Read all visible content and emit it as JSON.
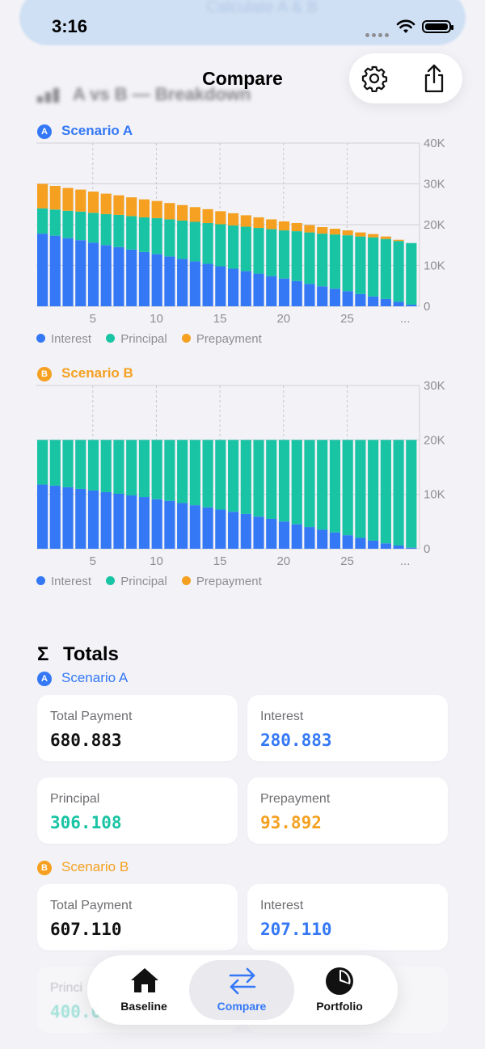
{
  "status": {
    "time": "3:16",
    "banner_text": "Calculate A & B"
  },
  "nav": {
    "title": "Compare",
    "section_title": "A vs B — Breakdown"
  },
  "colors": {
    "interest": "#3478f6",
    "principal": "#19c4a4",
    "prepayment": "#f5a020",
    "accent": "#3478f6"
  },
  "scenario_a": {
    "badge": "A",
    "label": "Scenario A"
  },
  "scenario_b": {
    "badge": "B",
    "label": "Scenario B"
  },
  "legend": [
    "Interest",
    "Principal",
    "Prepayment"
  ],
  "chart_data": [
    {
      "type": "bar",
      "stacked": true,
      "title": "Scenario A",
      "x_ticks": [
        "5",
        "10",
        "15",
        "20",
        "25",
        "..."
      ],
      "y_ticks": [
        "40K",
        "30K",
        "20K",
        "10K",
        "0"
      ],
      "ylim": [
        0,
        40000
      ],
      "categories": [
        1,
        2,
        3,
        4,
        5,
        6,
        7,
        8,
        9,
        10,
        11,
        12,
        13,
        14,
        15,
        16,
        17,
        18,
        19,
        20,
        21,
        22,
        23,
        24,
        25,
        26,
        27,
        28,
        29,
        30
      ],
      "series": [
        {
          "name": "Interest",
          "values": [
            17800,
            17300,
            16700,
            16200,
            15600,
            15000,
            14500,
            13900,
            13300,
            12800,
            12200,
            11600,
            11000,
            10400,
            9800,
            9200,
            8600,
            8000,
            7400,
            6800,
            6200,
            5500,
            4900,
            4300,
            3700,
            3000,
            2400,
            1800,
            1100,
            400
          ]
        },
        {
          "name": "Principal",
          "values": [
            6200,
            6400,
            6700,
            7000,
            7300,
            7600,
            7900,
            8200,
            8500,
            8800,
            9100,
            9400,
            9700,
            10000,
            10300,
            10600,
            10900,
            11200,
            11500,
            11800,
            12200,
            12600,
            12900,
            13300,
            13700,
            14100,
            14500,
            14700,
            14900,
            15100
          ]
        },
        {
          "name": "Prepayment",
          "values": [
            6000,
            5800,
            5600,
            5400,
            5200,
            5000,
            4800,
            4600,
            4400,
            4200,
            4000,
            3800,
            3600,
            3400,
            3200,
            3000,
            2800,
            2600,
            2400,
            2200,
            2000,
            1800,
            1600,
            1400,
            1200,
            1000,
            800,
            600,
            300,
            0
          ]
        }
      ]
    },
    {
      "type": "bar",
      "stacked": true,
      "title": "Scenario B",
      "x_ticks": [
        "5",
        "10",
        "15",
        "20",
        "25",
        "..."
      ],
      "y_ticks": [
        "30K",
        "20K",
        "10K",
        "0"
      ],
      "ylim": [
        0,
        30000
      ],
      "categories": [
        1,
        2,
        3,
        4,
        5,
        6,
        7,
        8,
        9,
        10,
        11,
        12,
        13,
        14,
        15,
        16,
        17,
        18,
        19,
        20,
        21,
        22,
        23,
        24,
        25,
        26,
        27,
        28,
        29,
        30
      ],
      "series": [
        {
          "name": "Interest",
          "values": [
            11800,
            11600,
            11300,
            11000,
            10700,
            10400,
            10100,
            9800,
            9500,
            9100,
            8800,
            8400,
            8000,
            7600,
            7200,
            6800,
            6400,
            5900,
            5500,
            5000,
            4500,
            4000,
            3500,
            3000,
            2500,
            2000,
            1500,
            1000,
            600,
            200
          ]
        },
        {
          "name": "Principal",
          "values": [
            8200,
            8400,
            8700,
            9000,
            9300,
            9600,
            9900,
            10200,
            10500,
            10900,
            11200,
            11600,
            12000,
            12400,
            12800,
            13200,
            13600,
            14100,
            14500,
            15000,
            15500,
            16000,
            16500,
            17000,
            17500,
            18000,
            18500,
            19000,
            19400,
            19800
          ]
        },
        {
          "name": "Prepayment",
          "values": [
            0,
            0,
            0,
            0,
            0,
            0,
            0,
            0,
            0,
            0,
            0,
            0,
            0,
            0,
            0,
            0,
            0,
            0,
            0,
            0,
            0,
            0,
            0,
            0,
            0,
            0,
            0,
            0,
            0,
            0
          ]
        }
      ]
    }
  ],
  "totals": {
    "title": "Totals",
    "a": {
      "label": "Scenario A",
      "total_payment_label": "Total Payment",
      "total_payment": "680.883",
      "interest_label": "Interest",
      "interest": "280.883",
      "principal_label": "Principal",
      "principal": "306.108",
      "prepayment_label": "Prepayment",
      "prepayment": "93.892"
    },
    "b": {
      "label": "Scenario B",
      "total_payment_label": "Total Payment",
      "total_payment": "607.110",
      "interest_label": "Interest",
      "interest": "207.110",
      "principal_label": "Princi",
      "principal": "400.0"
    }
  },
  "tabs": [
    {
      "label": "Baseline",
      "icon": "house-icon"
    },
    {
      "label": "Compare",
      "icon": "arrows-swap-icon",
      "active": true
    },
    {
      "label": "Portfolio",
      "icon": "pie-chart-icon"
    }
  ]
}
